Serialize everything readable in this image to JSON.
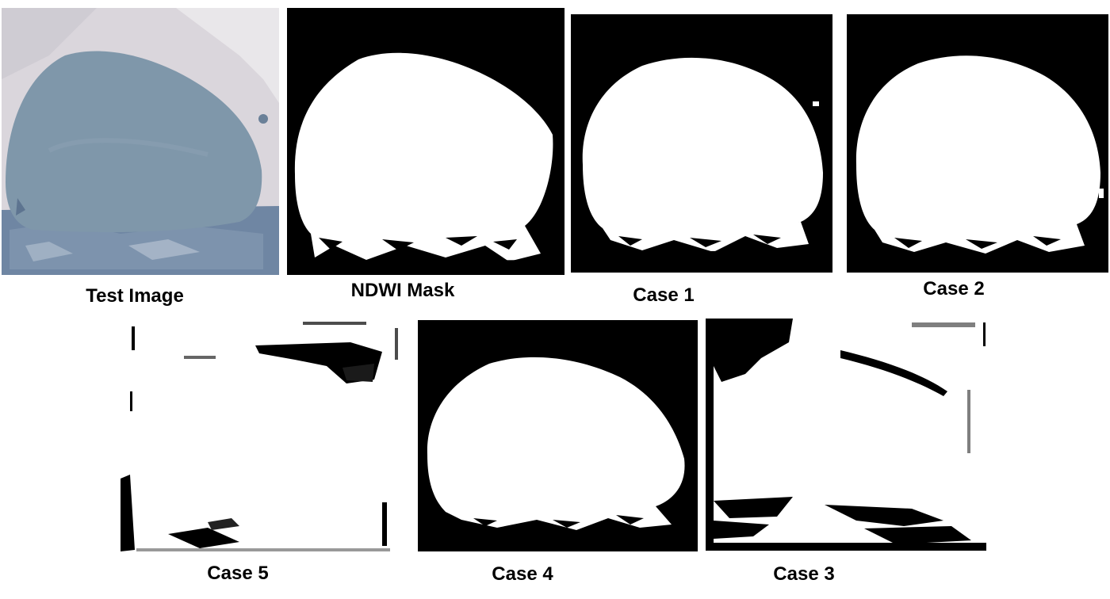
{
  "figure": {
    "top_row": [
      {
        "id": "test-image",
        "caption": "Test Image"
      },
      {
        "id": "ndwi-mask",
        "caption": "NDWI Mask"
      },
      {
        "id": "case-1",
        "caption": "Case 1"
      },
      {
        "id": "case-2",
        "caption": "Case 2"
      }
    ],
    "bottom_row": [
      {
        "id": "case-5",
        "caption": "Case 5"
      },
      {
        "id": "case-4",
        "caption": "Case 4"
      },
      {
        "id": "case-3",
        "caption": "Case 3"
      }
    ]
  },
  "colors": {
    "water_mask": "#ffffff",
    "background_mask": "#000000",
    "test_image_water": "#7f97aa",
    "test_image_land": "#dcd8df"
  }
}
